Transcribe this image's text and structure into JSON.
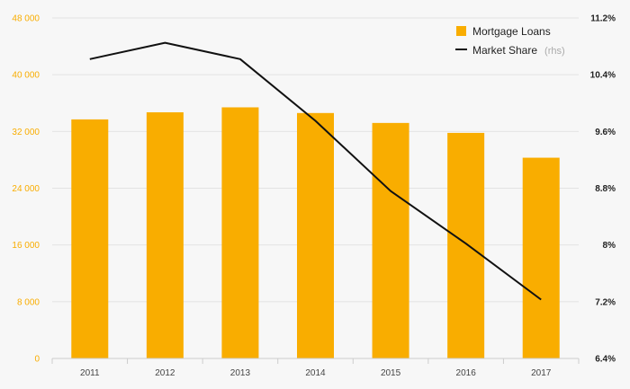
{
  "colors": {
    "bar": "#f9ad00",
    "line": "#111111",
    "left_tick": "#f9ad00",
    "grid": "#e3e3e3",
    "axis": "#cccccc"
  },
  "chart_data": {
    "type": "bar",
    "categories": [
      "2011",
      "2012",
      "2013",
      "2014",
      "2015",
      "2016",
      "2017"
    ],
    "series": [
      {
        "name": "Mortgage Loans",
        "type": "bar",
        "axis": "left",
        "values": [
          33700,
          34700,
          35400,
          34600,
          33200,
          31800,
          28300
        ]
      },
      {
        "name": "Market Share",
        "type": "line",
        "axis": "right",
        "values": [
          10.62,
          10.85,
          10.62,
          9.75,
          8.76,
          8.02,
          7.23
        ]
      }
    ],
    "legend": {
      "placement": "top-right",
      "items": [
        {
          "label": "Mortgage Loans",
          "note": ""
        },
        {
          "label": "Market Share",
          "note": "(rhs)"
        }
      ]
    },
    "y_left": {
      "ylim": [
        0,
        48000
      ],
      "ticks": [
        0,
        8000,
        16000,
        24000,
        32000,
        40000,
        48000
      ],
      "tick_labels": [
        "0",
        "8 000",
        "16 000",
        "24 000",
        "32 000",
        "40 000",
        "48 000"
      ]
    },
    "y_right": {
      "ylim": [
        6.4,
        11.2
      ],
      "ticks": [
        6.4,
        7.2,
        8.0,
        8.8,
        9.6,
        10.4,
        11.2
      ],
      "tick_labels": [
        "6.4%",
        "7.2%",
        "8%",
        "8.8%",
        "9.6%",
        "10.4%",
        "11.2%"
      ]
    },
    "grid": true,
    "title": "",
    "xlabel": "",
    "ylabel": ""
  }
}
